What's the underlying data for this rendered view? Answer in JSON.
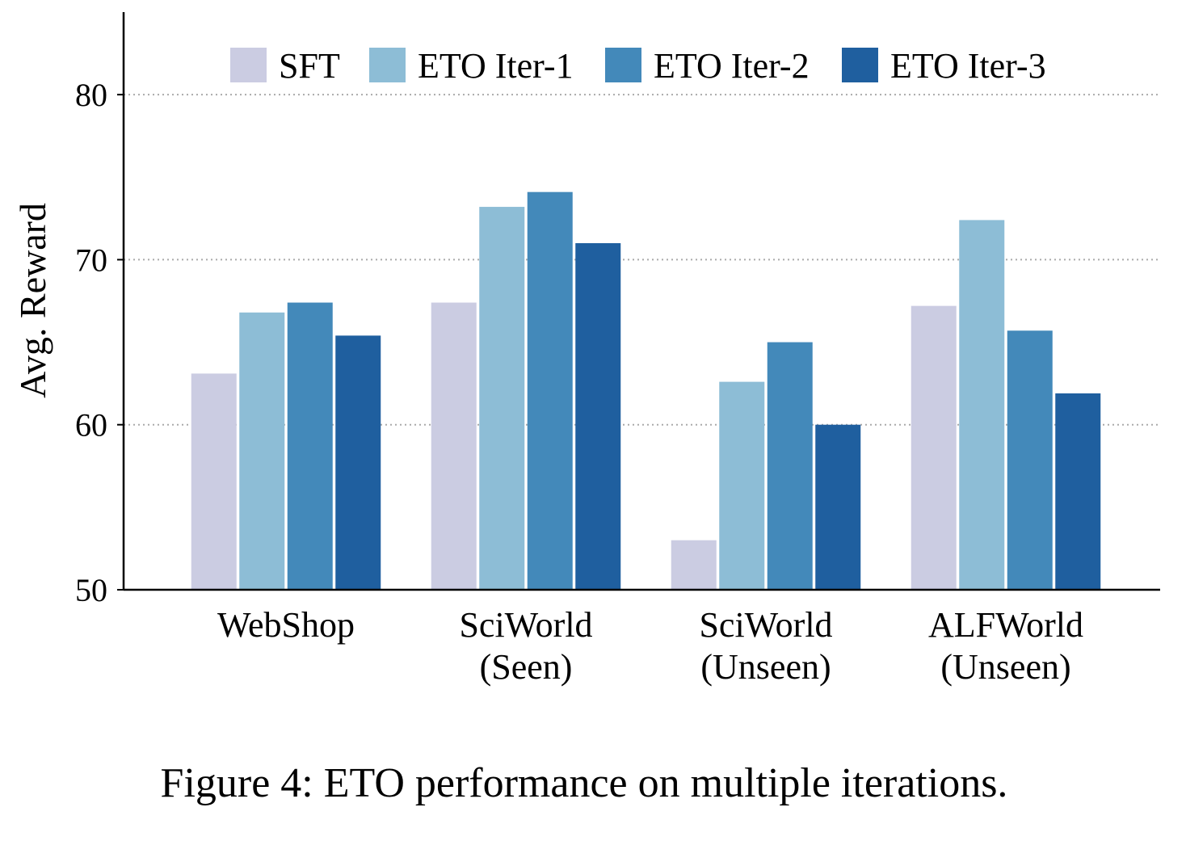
{
  "chart_data": {
    "type": "bar",
    "title": "",
    "xlabel": "",
    "ylabel": "Avg. Reward",
    "ylim": [
      50,
      85
    ],
    "yticks": [
      50,
      60,
      70,
      80
    ],
    "grid": "horizontal dotted at 60, 70, 80",
    "legend_position": "top",
    "categories": [
      [
        "WebShop"
      ],
      [
        "SciWorld",
        "(Seen)"
      ],
      [
        "SciWorld",
        "(Unseen)"
      ],
      [
        "ALFWorld",
        "(Unseen)"
      ]
    ],
    "series": [
      {
        "name": "SFT",
        "color": "#cbcce2",
        "values": [
          63.1,
          67.4,
          53.0,
          67.2
        ]
      },
      {
        "name": "ETO Iter-1",
        "color": "#8dbdd6",
        "values": [
          66.8,
          73.2,
          62.6,
          72.4
        ]
      },
      {
        "name": "ETO Iter-2",
        "color": "#4389ba",
        "values": [
          67.4,
          74.1,
          65.0,
          65.7
        ]
      },
      {
        "name": "ETO Iter-3",
        "color": "#1f5f9f",
        "values": [
          65.4,
          71.0,
          60.0,
          61.9
        ]
      }
    ]
  },
  "caption": "Figure 4: ETO performance on multiple iterations."
}
